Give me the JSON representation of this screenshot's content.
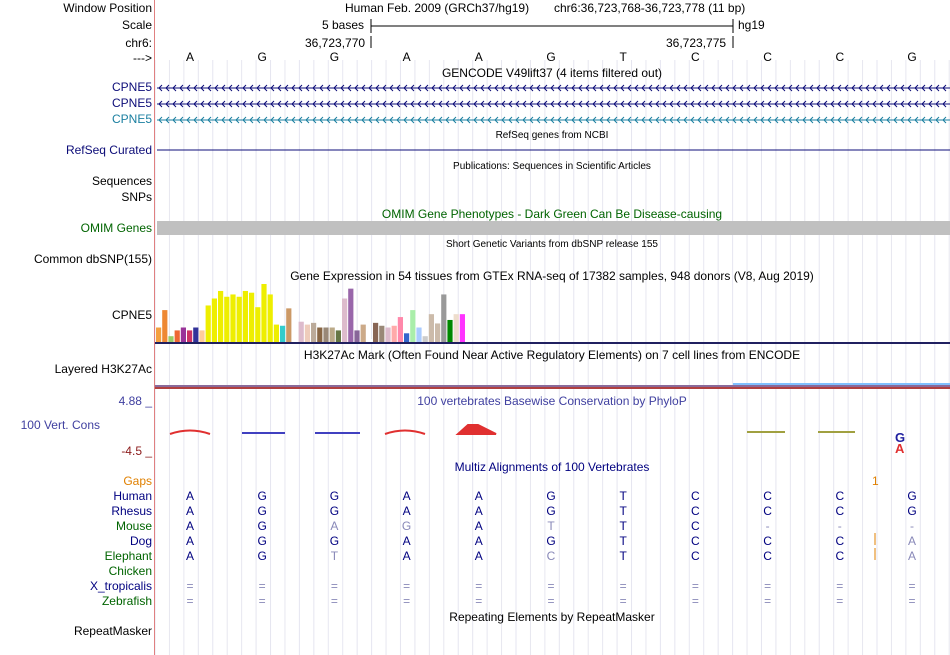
{
  "header": {
    "window_position_label": "Window Position",
    "scale_label": "Scale",
    "chrom_label": "chr6:",
    "arrow_label": "--->",
    "assembly_text": "Human Feb. 2009 (GRCh37/hg19)",
    "position_text": "chr6:36,723,768-36,723,778 (11 bp)",
    "scale_text": "5 bases",
    "db_text": "hg19",
    "coord_start": "36,723,770",
    "coord_end": "36,723,775"
  },
  "bases": [
    "A",
    "G",
    "G",
    "A",
    "A",
    "G",
    "T",
    "C",
    "C",
    "C",
    "G"
  ],
  "tracks": {
    "gencode": {
      "title": "GENCODE V49lift37 (4 items filtered out)",
      "genes": [
        {
          "label": "CPNE5",
          "color": "#0c0c78"
        },
        {
          "label": "CPNE5",
          "color": "#0c0c78"
        },
        {
          "label": "CPNE5",
          "color": "#1a7fa0"
        }
      ]
    },
    "refseq": {
      "title": "RefSeq genes from NCBI",
      "label": "RefSeq Curated",
      "color": "#0c0c78"
    },
    "publications": {
      "title": "Publications: Sequences in Scientific Articles",
      "labels": [
        "Sequences",
        "SNPs"
      ]
    },
    "omim": {
      "title": "OMIM Gene Phenotypes - Dark Green Can Be Disease-causing",
      "label": "OMIM Genes",
      "color": "#006400"
    },
    "dbsnp": {
      "title": "Short Genetic Variants from dbSNP release 155",
      "label": "Common dbSNP(155)"
    },
    "gtex": {
      "title": "Gene Expression in 54 tissues from GTEx RNA-seq of 17382 samples, 948 donors (V8, Aug 2019)",
      "label": "CPNE5",
      "bars": [
        {
          "value": 0.25,
          "color": "#f4a040"
        },
        {
          "value": 0.55,
          "color": "#ee8833"
        },
        {
          "value": 0.1,
          "color": "#99cc66"
        },
        {
          "value": 0.2,
          "color": "#ee6633"
        },
        {
          "value": 0.25,
          "color": "#993399"
        },
        {
          "value": 0.2,
          "color": "#cc3366"
        },
        {
          "value": 0.25,
          "color": "#333399"
        },
        {
          "value": 0.2,
          "color": "#ffcc99"
        },
        {
          "value": 0.63,
          "color": "#eeee00"
        },
        {
          "value": 0.75,
          "color": "#eeee00"
        },
        {
          "value": 0.88,
          "color": "#eeee00"
        },
        {
          "value": 0.78,
          "color": "#eeee00"
        },
        {
          "value": 0.82,
          "color": "#eeee00"
        },
        {
          "value": 0.78,
          "color": "#eeee00"
        },
        {
          "value": 0.88,
          "color": "#eeee00"
        },
        {
          "value": 0.85,
          "color": "#eeee00"
        },
        {
          "value": 0.6,
          "color": "#eeee00"
        },
        {
          "value": 1.0,
          "color": "#eeee00"
        },
        {
          "value": 0.82,
          "color": "#eeee00"
        },
        {
          "value": 0.3,
          "color": "#eeee00"
        },
        {
          "value": 0.28,
          "color": "#33cccc"
        },
        {
          "value": 0.58,
          "color": "#cc9966"
        },
        {
          "value": 0.0,
          "color": "#ffffff"
        },
        {
          "value": 0.35,
          "color": "#ddbbcc"
        },
        {
          "value": 0.3,
          "color": "#eeccbb"
        },
        {
          "value": 0.33,
          "color": "#bbaa99"
        },
        {
          "value": 0.25,
          "color": "#886644"
        },
        {
          "value": 0.25,
          "color": "#998877"
        },
        {
          "value": 0.25,
          "color": "#bbaa88"
        },
        {
          "value": 0.2,
          "color": "#667744"
        },
        {
          "value": 0.75,
          "color": "#ddbbcc"
        },
        {
          "value": 0.92,
          "color": "#9966aa"
        },
        {
          "value": 0.2,
          "color": "#886699"
        },
        {
          "value": 0.3,
          "color": "#ccaa88"
        },
        {
          "value": 0.05,
          "color": "#ffffff"
        },
        {
          "value": 0.33,
          "color": "#886655"
        },
        {
          "value": 0.28,
          "color": "#998877"
        },
        {
          "value": 0.25,
          "color": "#ddbbcc"
        },
        {
          "value": 0.28,
          "color": "#ffaaaa"
        },
        {
          "value": 0.43,
          "color": "#ff88aa"
        },
        {
          "value": 0.15,
          "color": "#3366cc"
        },
        {
          "value": 0.55,
          "color": "#aaeeaa"
        },
        {
          "value": 0.25,
          "color": "#aaccff"
        },
        {
          "value": 0.1,
          "color": "#cccccc"
        },
        {
          "value": 0.48,
          "color": "#ccbbaa"
        },
        {
          "value": 0.32,
          "color": "#ccbbaa"
        },
        {
          "value": 0.82,
          "color": "#999999"
        },
        {
          "value": 0.38,
          "color": "#008800"
        },
        {
          "value": 0.48,
          "color": "#eeddcc"
        },
        {
          "value": 0.48,
          "color": "#ff33ff"
        }
      ]
    },
    "h3k27ac": {
      "title": "H3K27Ac Mark (Often Found Near Active Regulatory Elements) on 7 cell lines from ENCODE",
      "label": "Layered H3K27Ac"
    },
    "phylop": {
      "title": "100 vertebrates Basewise Conservation by PhyloP",
      "label": "100 Vert. Cons",
      "max_label": "4.88 _",
      "min_label": "-4.5 _",
      "color": "#4040a0"
    },
    "multiz": {
      "title": "Multiz Alignments of 100 Vertebrates",
      "gaps_label": "Gaps",
      "gaps_mark": "1",
      "species": [
        {
          "name": "Human",
          "color": "#000080",
          "bases": [
            "A",
            "G",
            "G",
            "A",
            "A",
            "G",
            "T",
            "C",
            "C",
            "C",
            "G"
          ],
          "dim": [
            false,
            false,
            false,
            false,
            false,
            false,
            false,
            false,
            false,
            false,
            false
          ]
        },
        {
          "name": "Rhesus",
          "color": "#000080",
          "bases": [
            "A",
            "G",
            "G",
            "A",
            "A",
            "G",
            "T",
            "C",
            "C",
            "C",
            "G"
          ],
          "dim": [
            false,
            false,
            false,
            false,
            false,
            false,
            false,
            false,
            false,
            false,
            false
          ]
        },
        {
          "name": "Mouse",
          "color": "#006400",
          "bases": [
            "A",
            "G",
            "A",
            "G",
            "A",
            "T",
            "T",
            "C",
            "-",
            "-",
            "-"
          ],
          "dim": [
            false,
            false,
            true,
            true,
            false,
            true,
            false,
            false,
            true,
            true,
            true
          ]
        },
        {
          "name": "Dog",
          "color": "#000080",
          "bases": [
            "A",
            "G",
            "G",
            "A",
            "A",
            "G",
            "T",
            "C",
            "C",
            "C",
            "A"
          ],
          "dim": [
            false,
            false,
            false,
            false,
            false,
            false,
            false,
            false,
            false,
            false,
            true
          ]
        },
        {
          "name": "Elephant",
          "color": "#006400",
          "bases": [
            "A",
            "G",
            "T",
            "A",
            "A",
            "C",
            "T",
            "C",
            "C",
            "C",
            "A"
          ],
          "dim": [
            false,
            false,
            true,
            false,
            false,
            true,
            false,
            false,
            false,
            false,
            true
          ]
        },
        {
          "name": "Chicken",
          "color": "#006400",
          "bases": [
            "",
            "",
            "",
            "",
            "",
            "",
            "",
            "",
            "",
            "",
            ""
          ],
          "dim": [
            false,
            false,
            false,
            false,
            false,
            false,
            false,
            false,
            false,
            false,
            false
          ]
        },
        {
          "name": "X_tropicalis",
          "color": "#000080",
          "bases": [
            "=",
            "=",
            "=",
            "=",
            "=",
            "=",
            "=",
            "=",
            "=",
            "=",
            "="
          ],
          "dim": [
            true,
            true,
            true,
            true,
            true,
            true,
            true,
            true,
            true,
            true,
            true
          ]
        },
        {
          "name": "Zebrafish",
          "color": "#006400",
          "bases": [
            "=",
            "=",
            "=",
            "=",
            "=",
            "=",
            "=",
            "=",
            "=",
            "=",
            "="
          ],
          "dim": [
            true,
            true,
            true,
            true,
            true,
            true,
            true,
            true,
            true,
            true,
            true
          ]
        }
      ]
    },
    "repeatmasker": {
      "title": "Repeating Elements by RepeatMasker",
      "label": "RepeatMasker"
    }
  }
}
